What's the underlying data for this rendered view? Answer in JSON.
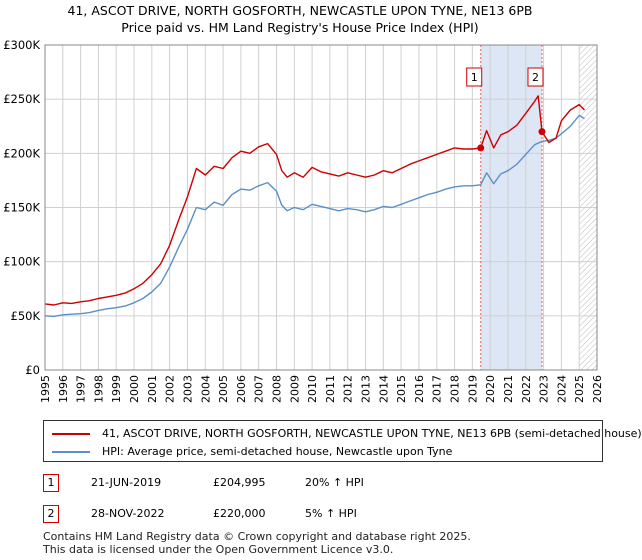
{
  "title_line1": "41, ASCOT DRIVE, NORTH GOSFORTH, NEWCASTLE UPON TYNE, NE13 6PB",
  "title_line2": "Price paid vs. HM Land Registry's House Price Index (HPI)",
  "colors": {
    "property": "#cc0000",
    "hpi": "#5b8fc9",
    "shade": "#dde6f5",
    "grid": "#d0d0d0"
  },
  "chart_data": {
    "type": "line",
    "title": "Price paid vs. HM Land Registry's House Price Index (HPI)",
    "xlabel": "",
    "ylabel": "",
    "xlim": [
      1995,
      2026
    ],
    "ylim": [
      0,
      300000
    ],
    "x_ticks": [
      1995,
      1996,
      1997,
      1998,
      1999,
      2000,
      2001,
      2002,
      2003,
      2004,
      2005,
      2006,
      2007,
      2008,
      2009,
      2010,
      2011,
      2012,
      2013,
      2014,
      2015,
      2016,
      2017,
      2018,
      2019,
      2020,
      2021,
      2022,
      2023,
      2024,
      2025,
      2026
    ],
    "y_ticks": [
      {
        "value": 0,
        "label": "£0"
      },
      {
        "value": 50000,
        "label": "£50K"
      },
      {
        "value": 100000,
        "label": "£100K"
      },
      {
        "value": 150000,
        "label": "£150K"
      },
      {
        "value": 200000,
        "label": "£200K"
      },
      {
        "value": 250000,
        "label": "£250K"
      },
      {
        "value": 300000,
        "label": "£300K"
      }
    ],
    "series": [
      {
        "name": "41, ASCOT DRIVE, NORTH GOSFORTH, NEWCASTLE UPON TYNE, NE13 6PB (semi-detached house)",
        "color": "#cc0000",
        "x": [
          1995.0,
          1995.5,
          1996.0,
          1996.5,
          1997.0,
          1997.5,
          1998.0,
          1998.5,
          1999.0,
          1999.5,
          2000.0,
          2000.5,
          2001.0,
          2001.5,
          2002.0,
          2002.5,
          2003.0,
          2003.5,
          2004.0,
          2004.5,
          2005.0,
          2005.5,
          2006.0,
          2006.5,
          2007.0,
          2007.5,
          2008.0,
          2008.3,
          2008.6,
          2009.0,
          2009.5,
          2010.0,
          2010.5,
          2011.0,
          2011.5,
          2012.0,
          2012.5,
          2013.0,
          2013.5,
          2014.0,
          2014.5,
          2015.0,
          2015.5,
          2016.0,
          2016.5,
          2017.0,
          2017.5,
          2018.0,
          2018.5,
          2019.0,
          2019.47,
          2019.8,
          2020.2,
          2020.6,
          2021.0,
          2021.5,
          2022.0,
          2022.5,
          2022.7,
          2022.91,
          2023.3,
          2023.7,
          2024.0,
          2024.5,
          2025.0,
          2025.3
        ],
        "values": [
          61000,
          60000,
          62000,
          61500,
          63000,
          64000,
          66000,
          67500,
          69000,
          71000,
          75000,
          80000,
          88000,
          98000,
          115000,
          138000,
          160000,
          186000,
          180000,
          188000,
          186000,
          196000,
          202000,
          200000,
          206000,
          209000,
          199000,
          184000,
          178000,
          182000,
          178000,
          187000,
          183000,
          181000,
          179000,
          182000,
          180000,
          178000,
          180000,
          184000,
          182000,
          186000,
          190000,
          193000,
          196000,
          199000,
          202000,
          205000,
          204000,
          204000,
          204995,
          221000,
          205000,
          217000,
          220000,
          226000,
          237000,
          248000,
          253000,
          220000,
          210000,
          214000,
          230000,
          240000,
          245000,
          240000
        ]
      },
      {
        "name": "HPI: Average price, semi-detached house, Newcastle upon Tyne",
        "color": "#5b8fc9",
        "x": [
          1995.0,
          1995.5,
          1996.0,
          1996.5,
          1997.0,
          1997.5,
          1998.0,
          1998.5,
          1999.0,
          1999.5,
          2000.0,
          2000.5,
          2001.0,
          2001.5,
          2002.0,
          2002.5,
          2003.0,
          2003.5,
          2004.0,
          2004.5,
          2005.0,
          2005.5,
          2006.0,
          2006.5,
          2007.0,
          2007.5,
          2008.0,
          2008.3,
          2008.6,
          2009.0,
          2009.5,
          2010.0,
          2010.5,
          2011.0,
          2011.5,
          2012.0,
          2012.5,
          2013.0,
          2013.5,
          2014.0,
          2014.5,
          2015.0,
          2015.5,
          2016.0,
          2016.5,
          2017.0,
          2017.5,
          2018.0,
          2018.5,
          2019.0,
          2019.47,
          2019.8,
          2020.2,
          2020.6,
          2021.0,
          2021.5,
          2022.0,
          2022.5,
          2022.91,
          2023.3,
          2023.7,
          2024.0,
          2024.5,
          2025.0,
          2025.3
        ],
        "values": [
          50000,
          49500,
          51000,
          51500,
          52000,
          53000,
          55000,
          56500,
          57500,
          59000,
          62000,
          66000,
          72000,
          80000,
          95000,
          113000,
          130000,
          150000,
          148000,
          155000,
          152000,
          162000,
          167000,
          166000,
          170000,
          173000,
          165000,
          152000,
          147000,
          150000,
          148000,
          153000,
          151000,
          149000,
          147000,
          149000,
          148000,
          146000,
          148000,
          151000,
          150000,
          153000,
          156000,
          159000,
          162000,
          164000,
          167000,
          169000,
          170000,
          170000,
          171000,
          182000,
          172000,
          181000,
          184000,
          190000,
          199000,
          208000,
          211000,
          212000,
          214000,
          218000,
          225000,
          235000,
          232000
        ]
      }
    ],
    "annotations": [
      {
        "label": "1",
        "x": 2019.47,
        "value": 204995
      },
      {
        "label": "2",
        "x": 2022.91,
        "value": 220000
      }
    ],
    "shaded_range": [
      2019.47,
      2022.91
    ],
    "hatched_from": 2025.0
  },
  "legend": {
    "property": "41, ASCOT DRIVE, NORTH GOSFORTH, NEWCASTLE UPON TYNE, NE13 6PB (semi-detached house)",
    "hpi": "HPI: Average price, semi-detached house, Newcastle upon Tyne"
  },
  "transactions": [
    {
      "num": "1",
      "date": "21-JUN-2019",
      "price": "£204,995",
      "hpi": "20% ↑ HPI"
    },
    {
      "num": "2",
      "date": "28-NOV-2022",
      "price": "£220,000",
      "hpi": "5% ↑ HPI"
    }
  ],
  "footer": {
    "line1": "Contains HM Land Registry data © Crown copyright and database right 2025.",
    "line2": "This data is licensed under the Open Government Licence v3.0."
  }
}
